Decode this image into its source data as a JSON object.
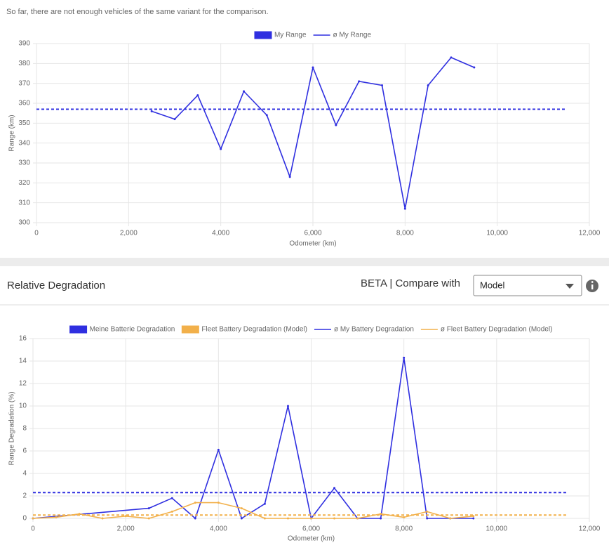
{
  "notice": "So far, there are not enough vehicles of the same variant for the comparison.",
  "section": {
    "title": "Relative Degradation",
    "compare_label": "BETA | Compare with",
    "select_value": "Model"
  },
  "chart_data": [
    {
      "type": "line",
      "xlabel": "Odometer (km)",
      "ylabel": "Range (km)",
      "xlim": [
        0,
        12000
      ],
      "xticks": [
        0,
        {
          "value": 2000,
          "label": "2,000"
        },
        {
          "value": 4000,
          "label": "4,000"
        },
        {
          "value": 6000,
          "label": "6,000"
        },
        {
          "value": 8000,
          "label": "8,000"
        },
        {
          "value": 10000,
          "label": "10,000"
        },
        {
          "value": 12000,
          "label": "12,000"
        }
      ],
      "ylim": [
        300,
        390
      ],
      "yticks": [
        300,
        310,
        320,
        330,
        340,
        350,
        360,
        370,
        380,
        390
      ],
      "grid": true,
      "series": [
        {
          "name": "My Range",
          "color": "#2f2fe0",
          "legend_marker": "box",
          "dashed": false,
          "x": [
            2500,
            3000,
            3500,
            4000,
            4500,
            5000,
            5500,
            6000,
            6500,
            7000,
            7500,
            8000,
            8500,
            9000,
            9500
          ],
          "values": [
            356,
            352,
            364,
            337,
            366,
            354,
            323,
            378,
            349,
            371,
            369,
            307,
            369,
            383,
            378
          ]
        },
        {
          "name": "ø My Range",
          "color": "#2f2fe0",
          "legend_marker": "line",
          "dashed": true,
          "x": [
            0,
            11500
          ],
          "values": [
            357,
            357
          ]
        }
      ]
    },
    {
      "type": "line",
      "xlabel": "Odometer (km)",
      "ylabel": "Range Degradation (%)",
      "xlim": [
        0,
        12000
      ],
      "xticks": [
        0,
        {
          "value": 2000,
          "label": "2,000"
        },
        {
          "value": 4000,
          "label": "4,000"
        },
        {
          "value": 6000,
          "label": "6,000"
        },
        {
          "value": 8000,
          "label": "8,000"
        },
        {
          "value": 10000,
          "label": "10,000"
        },
        {
          "value": 12000,
          "label": "12,000"
        }
      ],
      "ylim": [
        0,
        16
      ],
      "yticks": [
        0,
        2,
        4,
        6,
        8,
        10,
        12,
        14,
        16
      ],
      "grid": true,
      "series": [
        {
          "name": "Meine Batterie Degradation",
          "color": "#2f2fe0",
          "legend_marker": "box",
          "dashed": false,
          "x": [
            0,
            2500,
            3000,
            3500,
            4000,
            4500,
            5000,
            5500,
            6000,
            6500,
            7000,
            7500,
            8000,
            8500,
            9000,
            9500
          ],
          "values": [
            0,
            0.9,
            1.8,
            0,
            6.1,
            0,
            1.3,
            10,
            0,
            2.7,
            0,
            0,
            14.3,
            0,
            0,
            0
          ]
        },
        {
          "name": "Fleet Battery Degradation (Model)",
          "color": "#f2b04a",
          "legend_marker": "box",
          "dashed": false,
          "x": [
            0,
            500,
            1000,
            1500,
            2000,
            2500,
            3000,
            3500,
            4000,
            4500,
            5000,
            5500,
            6000,
            6500,
            7000,
            7500,
            8000,
            8500,
            9000,
            9500
          ],
          "values": [
            0,
            0.1,
            0.4,
            0,
            0.2,
            0,
            0.6,
            1.4,
            1.4,
            0.9,
            0,
            0,
            0,
            0,
            0,
            0.4,
            0.1,
            0.6,
            0,
            0.2
          ]
        },
        {
          "name": "ø My Battery Degradation",
          "color": "#2f2fe0",
          "legend_marker": "line",
          "dashed": true,
          "x": [
            0,
            11500
          ],
          "values": [
            2.3,
            2.3
          ]
        },
        {
          "name": "ø Fleet Battery Degradation (Model)",
          "color": "#f2b04a",
          "legend_marker": "line",
          "dashed": true,
          "x": [
            0,
            11500
          ],
          "values": [
            0.3,
            0.3
          ]
        }
      ]
    }
  ]
}
